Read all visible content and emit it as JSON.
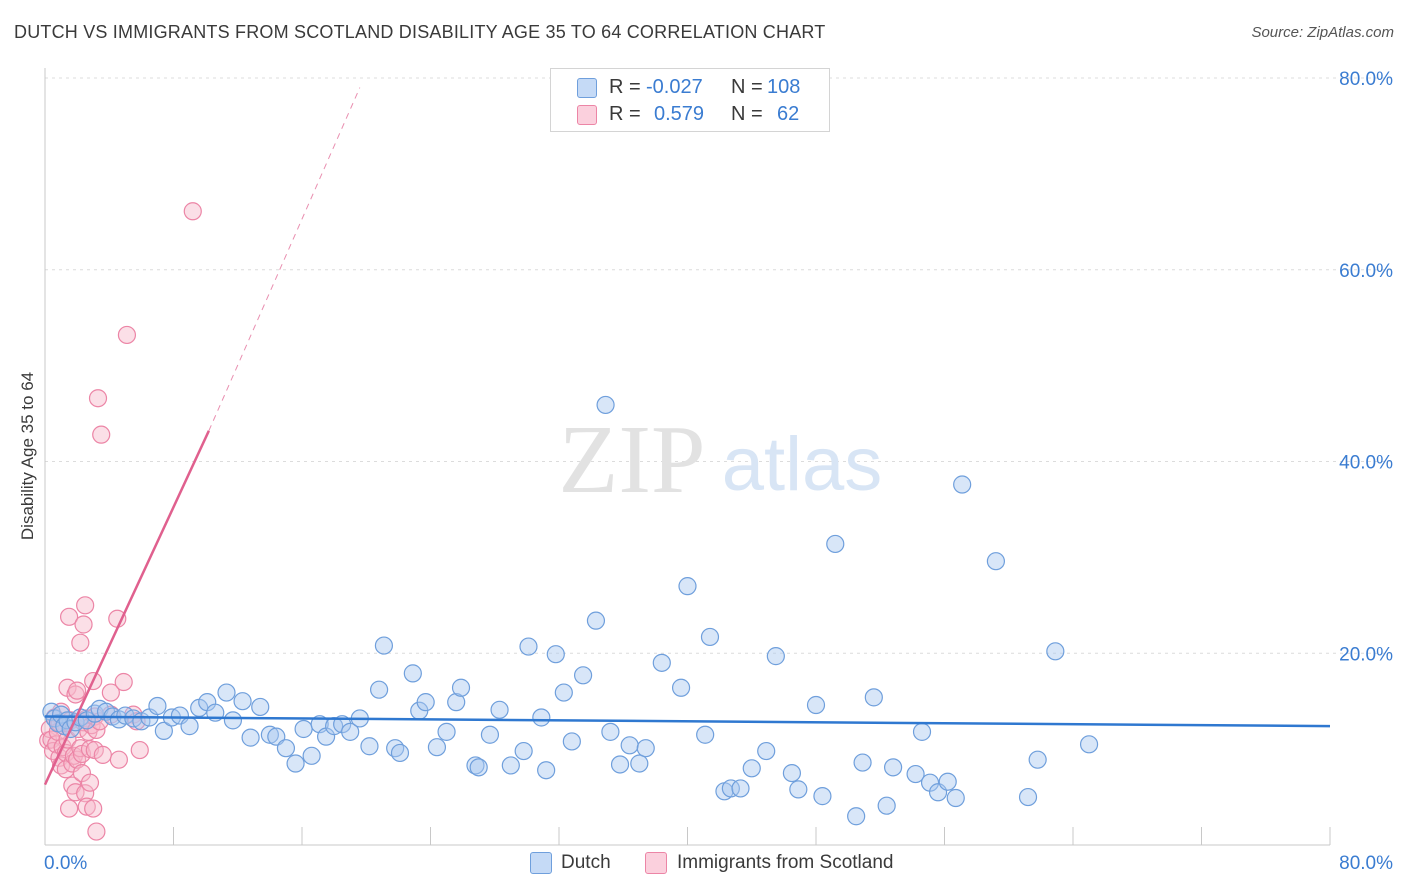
{
  "title": "DUTCH VS IMMIGRANTS FROM SCOTLAND DISABILITY AGE 35 TO 64 CORRELATION CHART",
  "source": "Source: ZipAtlas.com",
  "watermark": {
    "zip": "ZIP",
    "atlas": "atlas"
  },
  "legend": {
    "rows": [
      {
        "r_label": "R =",
        "r_value": "-0.027",
        "n_label": "N =",
        "n_value": "108"
      },
      {
        "r_label": "R =",
        "r_value": "0.579",
        "n_label": "N =",
        "n_value": "62"
      }
    ]
  },
  "colors": {
    "blue_fill": "#a9c8f0",
    "blue_stroke": "#6f9fdc",
    "blue_line": "#2f78d0",
    "pink_fill": "#f7b7c9",
    "pink_stroke": "#ec85a6",
    "pink_line": "#e0608e",
    "axis_text": "#3a7cd1",
    "grid": "#dcdcdc"
  },
  "chart_data": {
    "type": "scatter",
    "title": "DUTCH VS IMMIGRANTS FROM SCOTLAND DISABILITY AGE 35 TO 64 CORRELATION CHART",
    "xlabel": "",
    "ylabel": "Disability Age 35 to 64",
    "xlim": [
      0,
      80
    ],
    "ylim": [
      0,
      80
    ],
    "x_tick_labels": [
      "0.0%",
      "80.0%"
    ],
    "y_tick_labels": [
      "20.0%",
      "40.0%",
      "60.0%",
      "80.0%"
    ],
    "y_tick_values": [
      20,
      40,
      60,
      80
    ],
    "legend_entries": [
      "Dutch",
      "Immigrants from Scotland"
    ],
    "series": [
      {
        "name": "Dutch",
        "r": -0.027,
        "n": 108,
        "trend": {
          "x": [
            0,
            80
          ],
          "y": [
            13.4,
            12.4
          ]
        },
        "points": [
          [
            0.4,
            13.9
          ],
          [
            0.6,
            13.2
          ],
          [
            0.8,
            12.7
          ],
          [
            1.0,
            13.6
          ],
          [
            1.2,
            12.4
          ],
          [
            1.4,
            13.0
          ],
          [
            1.6,
            12.1
          ],
          [
            1.9,
            12.8
          ],
          [
            2.2,
            13.3
          ],
          [
            2.6,
            13.0
          ],
          [
            3.1,
            13.7
          ],
          [
            3.4,
            14.2
          ],
          [
            3.8,
            13.9
          ],
          [
            4.2,
            13.4
          ],
          [
            4.6,
            13.1
          ],
          [
            5.0,
            13.5
          ],
          [
            5.5,
            13.2
          ],
          [
            6.0,
            12.9
          ],
          [
            6.5,
            13.3
          ],
          [
            7.0,
            14.5
          ],
          [
            7.4,
            11.9
          ],
          [
            7.9,
            13.3
          ],
          [
            8.4,
            13.5
          ],
          [
            9.0,
            12.4
          ],
          [
            9.6,
            14.3
          ],
          [
            10.1,
            14.9
          ],
          [
            10.6,
            13.8
          ],
          [
            11.3,
            15.9
          ],
          [
            11.7,
            13.0
          ],
          [
            12.3,
            15.0
          ],
          [
            12.8,
            11.2
          ],
          [
            13.4,
            14.4
          ],
          [
            14.0,
            11.5
          ],
          [
            14.4,
            11.3
          ],
          [
            15.0,
            10.1
          ],
          [
            15.6,
            8.5
          ],
          [
            16.1,
            12.1
          ],
          [
            16.6,
            9.3
          ],
          [
            17.1,
            12.6
          ],
          [
            17.5,
            11.3
          ],
          [
            18.0,
            12.4
          ],
          [
            18.5,
            12.6
          ],
          [
            19.0,
            11.8
          ],
          [
            19.6,
            13.2
          ],
          [
            20.2,
            10.3
          ],
          [
            20.8,
            16.2
          ],
          [
            21.1,
            20.8
          ],
          [
            21.8,
            10.1
          ],
          [
            22.1,
            9.6
          ],
          [
            22.9,
            17.9
          ],
          [
            23.3,
            14.0
          ],
          [
            23.7,
            14.9
          ],
          [
            24.4,
            10.2
          ],
          [
            25.0,
            11.8
          ],
          [
            25.6,
            14.9
          ],
          [
            25.9,
            16.4
          ],
          [
            26.8,
            8.3
          ],
          [
            27.0,
            8.1
          ],
          [
            27.7,
            11.5
          ],
          [
            28.3,
            14.1
          ],
          [
            29.0,
            8.3
          ],
          [
            29.8,
            9.8
          ],
          [
            30.1,
            20.7
          ],
          [
            30.9,
            13.3
          ],
          [
            31.2,
            7.8
          ],
          [
            31.8,
            19.9
          ],
          [
            32.3,
            15.9
          ],
          [
            32.8,
            10.8
          ],
          [
            33.5,
            17.7
          ],
          [
            34.3,
            23.4
          ],
          [
            34.9,
            45.9
          ],
          [
            35.2,
            11.8
          ],
          [
            35.8,
            8.4
          ],
          [
            36.4,
            10.4
          ],
          [
            37.0,
            8.5
          ],
          [
            37.4,
            10.1
          ],
          [
            38.4,
            19.0
          ],
          [
            39.6,
            16.4
          ],
          [
            40.0,
            27.0
          ],
          [
            41.1,
            11.5
          ],
          [
            41.4,
            21.7
          ],
          [
            42.3,
            5.6
          ],
          [
            42.7,
            5.9
          ],
          [
            43.3,
            5.9
          ],
          [
            44.0,
            8.0
          ],
          [
            44.9,
            9.8
          ],
          [
            45.5,
            19.7
          ],
          [
            46.5,
            7.5
          ],
          [
            46.9,
            5.8
          ],
          [
            48.0,
            14.6
          ],
          [
            48.4,
            5.1
          ],
          [
            49.2,
            31.4
          ],
          [
            50.5,
            3.0
          ],
          [
            50.9,
            8.6
          ],
          [
            51.6,
            15.4
          ],
          [
            52.4,
            4.1
          ],
          [
            52.8,
            8.1
          ],
          [
            54.2,
            7.4
          ],
          [
            54.6,
            11.8
          ],
          [
            55.1,
            6.5
          ],
          [
            55.6,
            5.5
          ],
          [
            56.2,
            6.6
          ],
          [
            56.7,
            4.9
          ],
          [
            57.1,
            37.6
          ],
          [
            59.2,
            29.6
          ],
          [
            61.2,
            5.0
          ],
          [
            61.8,
            8.9
          ],
          [
            62.9,
            20.2
          ],
          [
            65.0,
            10.5
          ]
        ]
      },
      {
        "name": "Immigrants from Scotland",
        "r": 0.579,
        "n": 62,
        "trend": {
          "x": [
            0,
            10.2
          ],
          "y": [
            6.3,
            43.2
          ]
        },
        "trend_extension": {
          "x": [
            10.2,
            19.6
          ],
          "y": [
            43.2,
            79.0
          ]
        },
        "points": [
          [
            0.2,
            10.9
          ],
          [
            0.3,
            12.1
          ],
          [
            0.4,
            11.0
          ],
          [
            0.5,
            9.8
          ],
          [
            0.6,
            13.3
          ],
          [
            0.7,
            10.5
          ],
          [
            0.8,
            11.8
          ],
          [
            0.9,
            9.1
          ],
          [
            1.0,
            13.9
          ],
          [
            1.0,
            8.3
          ],
          [
            1.1,
            10.2
          ],
          [
            1.2,
            12.4
          ],
          [
            1.3,
            9.6
          ],
          [
            1.3,
            7.9
          ],
          [
            1.4,
            16.4
          ],
          [
            1.4,
            11.0
          ],
          [
            1.5,
            23.8
          ],
          [
            1.5,
            3.8
          ],
          [
            1.6,
            13.0
          ],
          [
            1.7,
            8.5
          ],
          [
            1.7,
            6.2
          ],
          [
            1.8,
            9.3
          ],
          [
            1.9,
            15.7
          ],
          [
            1.9,
            5.5
          ],
          [
            2.0,
            8.9
          ],
          [
            2.0,
            16.1
          ],
          [
            2.1,
            12.1
          ],
          [
            2.2,
            21.1
          ],
          [
            2.2,
            10.1
          ],
          [
            2.3,
            9.5
          ],
          [
            2.3,
            7.5
          ],
          [
            2.4,
            23.0
          ],
          [
            2.4,
            12.8
          ],
          [
            2.5,
            25.0
          ],
          [
            2.5,
            5.4
          ],
          [
            2.6,
            13.2
          ],
          [
            2.6,
            4.0
          ],
          [
            2.7,
            11.8
          ],
          [
            2.8,
            10.0
          ],
          [
            2.8,
            6.5
          ],
          [
            2.9,
            12.5
          ],
          [
            3.0,
            17.1
          ],
          [
            3.0,
            3.8
          ],
          [
            3.1,
            13.4
          ],
          [
            3.1,
            9.9
          ],
          [
            3.2,
            1.4
          ],
          [
            3.2,
            12.0
          ],
          [
            3.3,
            46.6
          ],
          [
            3.4,
            12.9
          ],
          [
            3.5,
            42.8
          ],
          [
            3.6,
            9.4
          ],
          [
            4.1,
            13.6
          ],
          [
            4.1,
            15.9
          ],
          [
            4.5,
            23.6
          ],
          [
            4.6,
            8.9
          ],
          [
            4.9,
            17.0
          ],
          [
            5.1,
            53.2
          ],
          [
            5.5,
            13.6
          ],
          [
            5.7,
            12.9
          ],
          [
            5.9,
            9.9
          ],
          [
            9.2,
            66.1
          ],
          [
            0.9,
            12.7
          ]
        ]
      }
    ]
  }
}
